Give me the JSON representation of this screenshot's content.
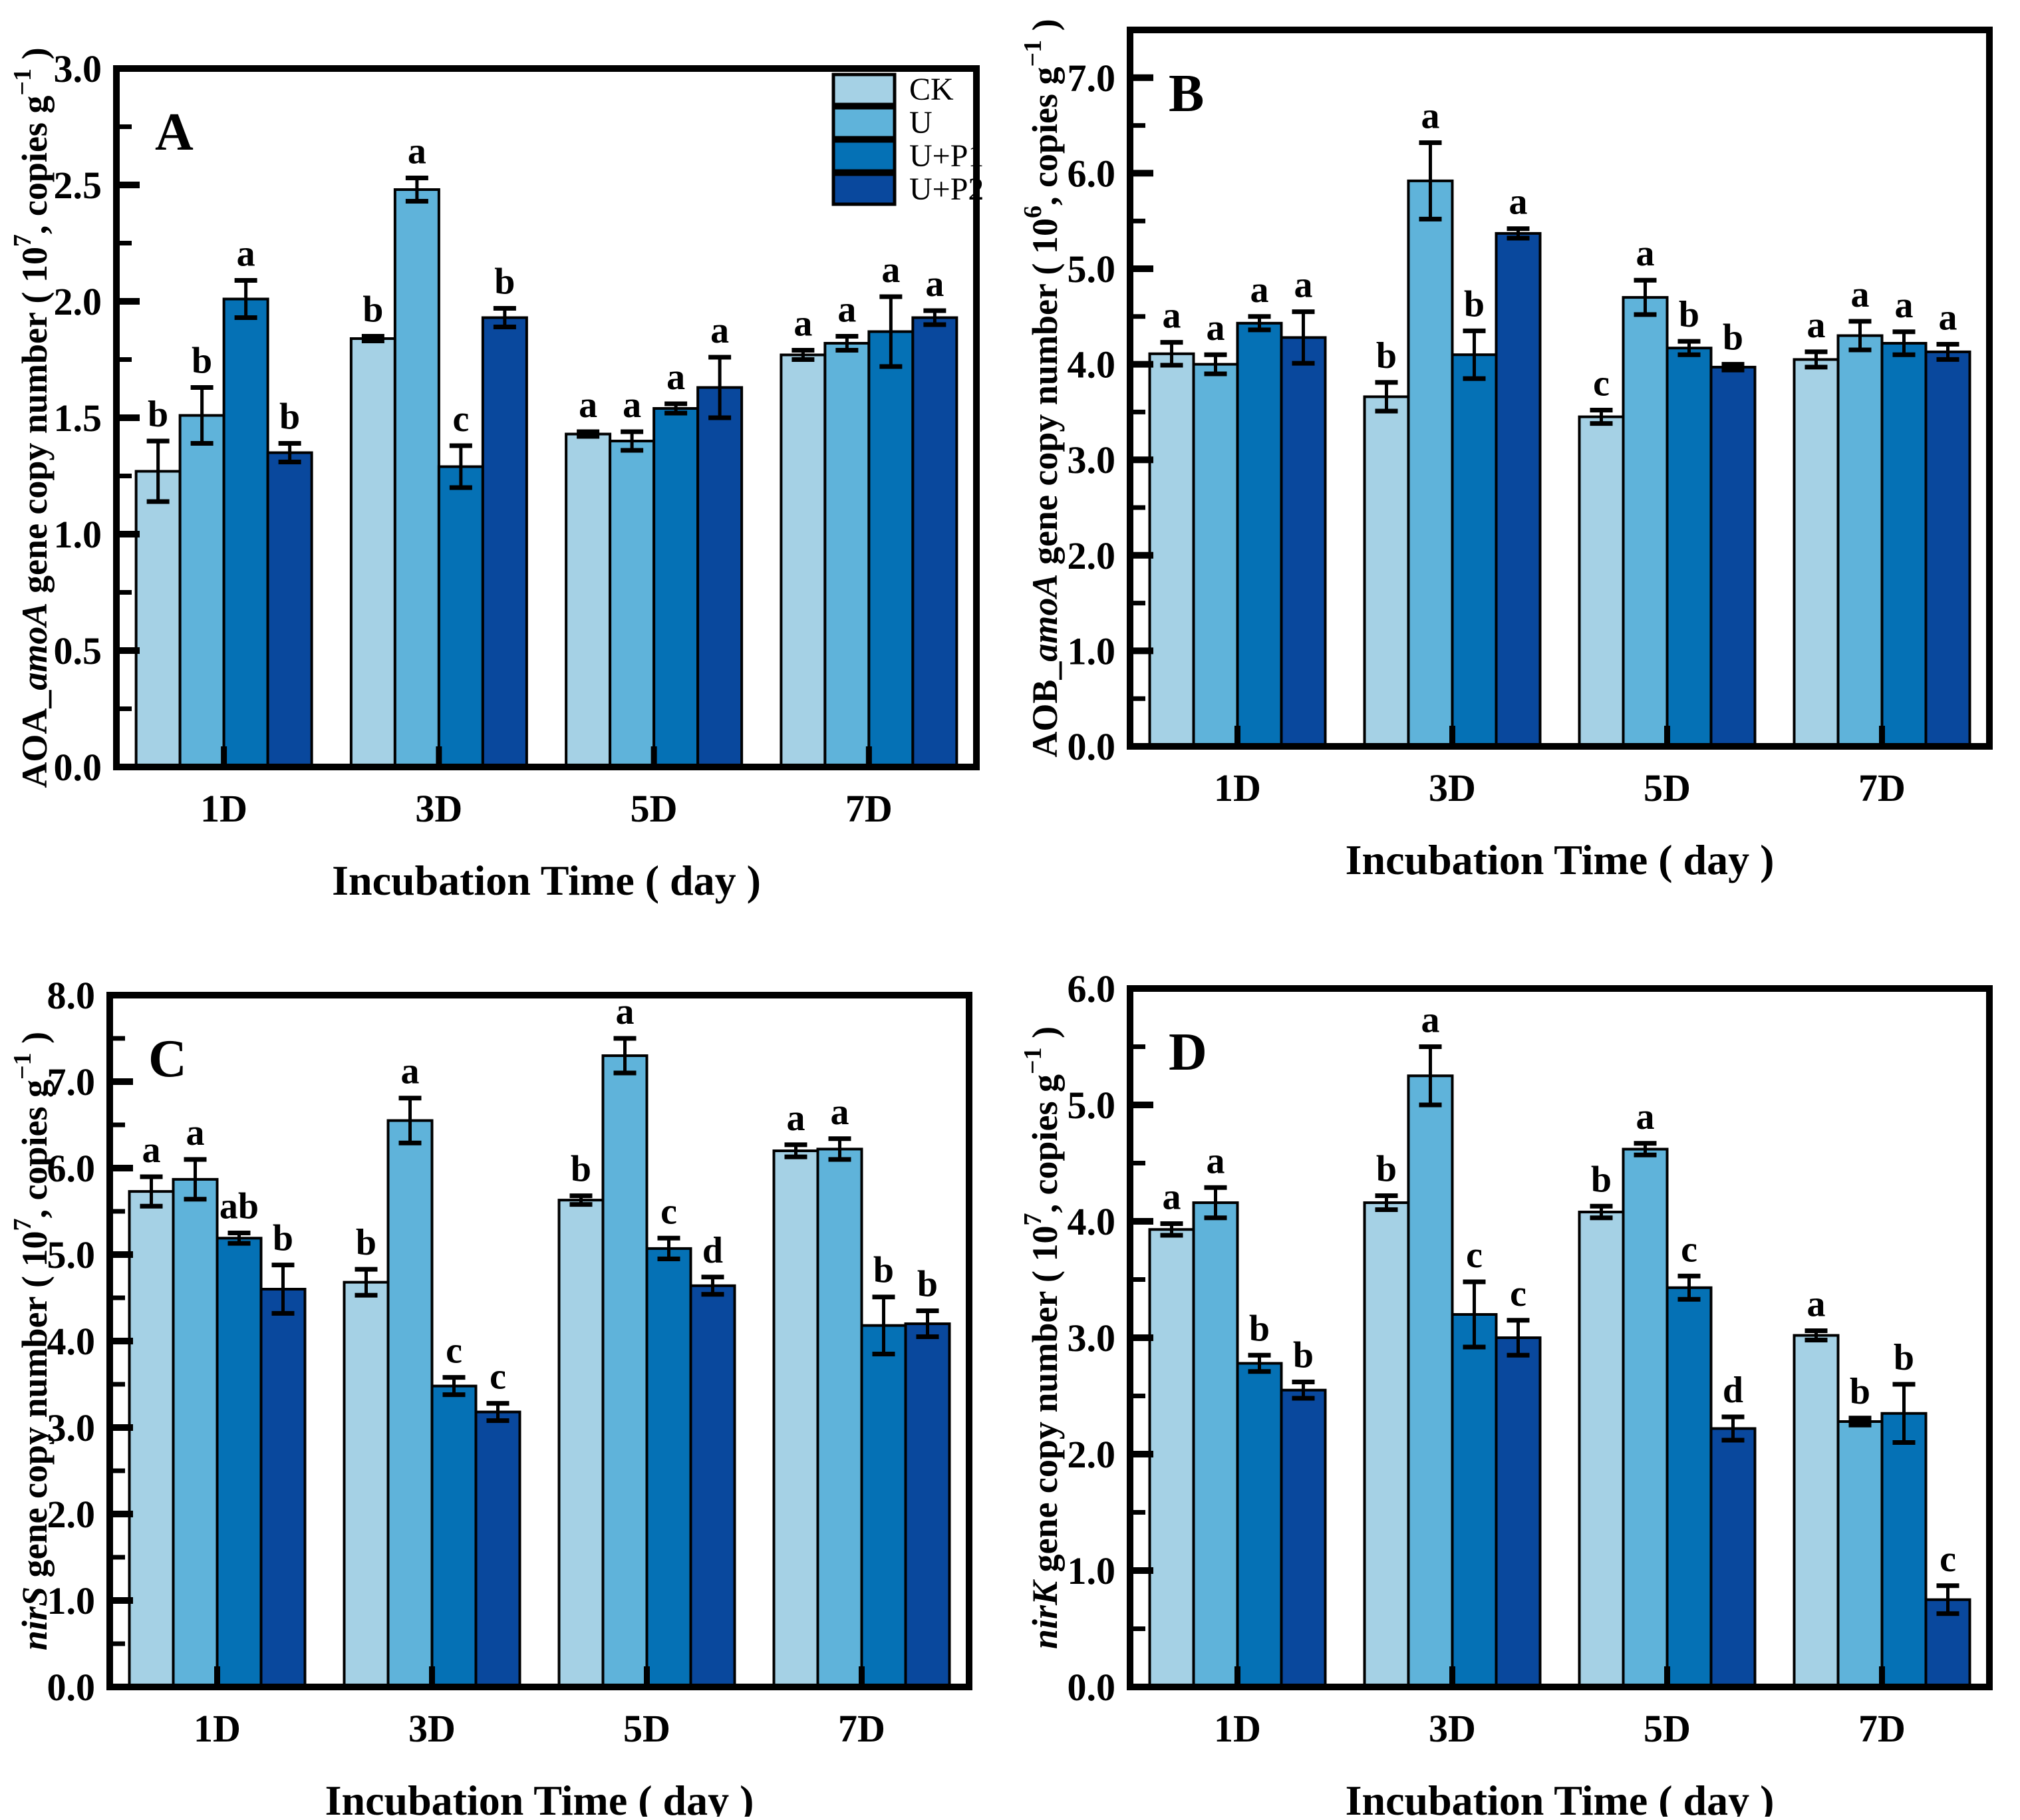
{
  "figure": {
    "background": "#ffffff",
    "x_axis_title": "Incubation Time ( day )",
    "categories": [
      "1D",
      "3D",
      "5D",
      "7D"
    ]
  },
  "legend": {
    "entries": [
      {
        "label": "CK",
        "color": "#a5d1e5"
      },
      {
        "label": "U",
        "color": "#5fb3da"
      },
      {
        "label": "U+P1",
        "color": "#0571b5"
      },
      {
        "label": "U+P2",
        "color": "#09489d"
      }
    ]
  },
  "chart_data": [
    {
      "type": "bar",
      "panel_letter": "A",
      "ylabel_segments": [
        {
          "text": "AOA_"
        },
        {
          "text": "amoA",
          "italic": true
        },
        {
          "text": " gene copy number ( 10"
        },
        {
          "text": "7",
          "sup": true
        },
        {
          "text": ", copies g"
        },
        {
          "text": "−1",
          "sup": true
        },
        {
          "text": " )"
        }
      ],
      "ylim": [
        0,
        3.0
      ],
      "ytick_labels": [
        "0.0",
        "0.5",
        "1.0",
        "1.5",
        "2.0",
        "2.5",
        "3.0"
      ],
      "ytick_step": 0.5,
      "minor_step": 0.25,
      "has_legend": true,
      "categories": [
        "1D",
        "3D",
        "5D",
        "7D"
      ],
      "series": [
        {
          "name": "CK",
          "values": [
            1.27,
            1.84,
            1.43,
            1.77
          ],
          "errors": [
            0.13,
            0.01,
            0.01,
            0.02
          ],
          "letters": [
            "b",
            "b",
            "a",
            "a"
          ]
        },
        {
          "name": "U",
          "values": [
            1.51,
            2.48,
            1.4,
            1.82
          ],
          "errors": [
            0.12,
            0.05,
            0.04,
            0.03
          ],
          "letters": [
            "b",
            "a",
            "a",
            "a"
          ]
        },
        {
          "name": "U+P1",
          "values": [
            2.01,
            1.29,
            1.54,
            1.87
          ],
          "errors": [
            0.08,
            0.09,
            0.02,
            0.15
          ],
          "letters": [
            "a",
            "c",
            "a",
            "a"
          ]
        },
        {
          "name": "U+P2",
          "values": [
            1.35,
            1.93,
            1.63,
            1.93
          ],
          "errors": [
            0.04,
            0.04,
            0.13,
            0.03
          ],
          "letters": [
            "b",
            "b",
            "a",
            "a"
          ]
        }
      ]
    },
    {
      "type": "bar",
      "panel_letter": "B",
      "ylabel_segments": [
        {
          "text": "AOB_"
        },
        {
          "text": "amoA",
          "italic": true
        },
        {
          "text": " gene copy number ( 10"
        },
        {
          "text": "6",
          "sup": true
        },
        {
          "text": ", copies g"
        },
        {
          "text": "−1",
          "sup": true
        },
        {
          "text": " )"
        }
      ],
      "ylim": [
        0,
        7.5
      ],
      "ytick_labels": [
        "0.0",
        "1.0",
        "2.0",
        "3.0",
        "4.0",
        "5.0",
        "6.0",
        "7.0"
      ],
      "ytick_step": 1.0,
      "minor_step": 0.5,
      "has_legend": false,
      "categories": [
        "1D",
        "3D",
        "5D",
        "7D"
      ],
      "series": [
        {
          "name": "CK",
          "values": [
            4.11,
            3.66,
            3.45,
            4.05
          ],
          "errors": [
            0.12,
            0.15,
            0.07,
            0.08
          ],
          "letters": [
            "a",
            "b",
            "c",
            "a"
          ]
        },
        {
          "name": "U",
          "values": [
            4.0,
            5.92,
            4.7,
            4.3
          ],
          "errors": [
            0.1,
            0.4,
            0.18,
            0.15
          ],
          "letters": [
            "a",
            "a",
            "a",
            "a"
          ]
        },
        {
          "name": "U+P1",
          "values": [
            4.43,
            4.1,
            4.17,
            4.22
          ],
          "errors": [
            0.07,
            0.25,
            0.07,
            0.12
          ],
          "letters": [
            "a",
            "b",
            "b",
            "a"
          ]
        },
        {
          "name": "U+P2",
          "values": [
            4.28,
            5.37,
            3.97,
            4.13
          ],
          "errors": [
            0.27,
            0.05,
            0.03,
            0.08
          ],
          "letters": [
            "a",
            "a",
            "b",
            "a"
          ]
        }
      ]
    },
    {
      "type": "bar",
      "panel_letter": "C",
      "ylabel_segments": [
        {
          "text": "nirS",
          "italic": true
        },
        {
          "text": " gene copy number ( 10"
        },
        {
          "text": "7",
          "sup": true
        },
        {
          "text": ", copies g"
        },
        {
          "text": "−1",
          "sup": true
        },
        {
          "text": " )"
        }
      ],
      "ylim": [
        0,
        8.0
      ],
      "ytick_labels": [
        "0.0",
        "1.0",
        "2.0",
        "3.0",
        "4.0",
        "5.0",
        "6.0",
        "7.0",
        "8.0"
      ],
      "ytick_step": 1.0,
      "minor_step": 0.5,
      "has_legend": false,
      "categories": [
        "1D",
        "3D",
        "5D",
        "7D"
      ],
      "series": [
        {
          "name": "CK",
          "values": [
            5.73,
            4.68,
            5.63,
            6.2
          ],
          "errors": [
            0.17,
            0.15,
            0.05,
            0.07
          ],
          "letters": [
            "a",
            "b",
            "b",
            "a"
          ]
        },
        {
          "name": "U",
          "values": [
            5.87,
            6.55,
            7.3,
            6.22
          ],
          "errors": [
            0.23,
            0.26,
            0.2,
            0.12
          ],
          "letters": [
            "a",
            "a",
            "a",
            "a"
          ]
        },
        {
          "name": "U+P1",
          "values": [
            5.19,
            3.48,
            5.07,
            4.18
          ],
          "errors": [
            0.06,
            0.1,
            0.12,
            0.33
          ],
          "letters": [
            "ab",
            "c",
            "c",
            "b"
          ]
        },
        {
          "name": "U+P2",
          "values": [
            4.6,
            3.18,
            4.64,
            4.2
          ],
          "errors": [
            0.28,
            0.1,
            0.1,
            0.15
          ],
          "letters": [
            "b",
            "c",
            "d",
            "b"
          ]
        }
      ]
    },
    {
      "type": "bar",
      "panel_letter": "D",
      "ylabel_segments": [
        {
          "text": "nirK",
          "italic": true
        },
        {
          "text": " gene copy number ( 10"
        },
        {
          "text": "7",
          "sup": true
        },
        {
          "text": ", copies g"
        },
        {
          "text": "−1",
          "sup": true
        },
        {
          "text": " )"
        }
      ],
      "ylim": [
        0,
        6.0
      ],
      "ytick_labels": [
        "0.0",
        "1.0",
        "2.0",
        "3.0",
        "4.0",
        "5.0",
        "6.0"
      ],
      "ytick_step": 1.0,
      "minor_step": 0.5,
      "has_legend": false,
      "categories": [
        "1D",
        "3D",
        "5D",
        "7D"
      ],
      "series": [
        {
          "name": "CK",
          "values": [
            3.93,
            4.16,
            4.08,
            3.02
          ],
          "errors": [
            0.05,
            0.06,
            0.05,
            0.04
          ],
          "letters": [
            "a",
            "b",
            "b",
            "a"
          ]
        },
        {
          "name": "U",
          "values": [
            4.16,
            5.25,
            4.62,
            2.28
          ],
          "errors": [
            0.13,
            0.25,
            0.05,
            0.03
          ],
          "letters": [
            "a",
            "a",
            "a",
            "b"
          ]
        },
        {
          "name": "U+P1",
          "values": [
            2.78,
            3.2,
            3.43,
            2.35
          ],
          "errors": [
            0.07,
            0.28,
            0.1,
            0.25
          ],
          "letters": [
            "b",
            "c",
            "c",
            "b"
          ]
        },
        {
          "name": "U+P2",
          "values": [
            2.55,
            3.0,
            2.22,
            0.75
          ],
          "errors": [
            0.07,
            0.15,
            0.1,
            0.12
          ],
          "letters": [
            "b",
            "c",
            "d",
            "c"
          ]
        }
      ]
    }
  ]
}
